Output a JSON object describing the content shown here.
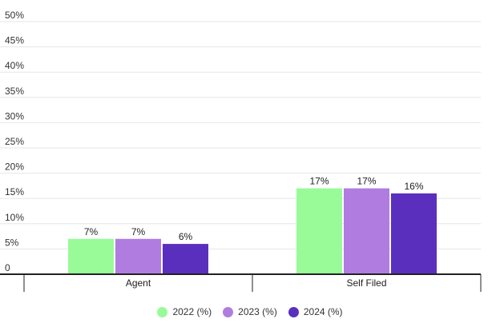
{
  "chart_data": {
    "type": "bar",
    "categories": [
      "Agent",
      "Self Filed"
    ],
    "series": [
      {
        "name": "2022 (%)",
        "values": [
          7,
          17
        ],
        "labels": [
          "7%",
          "17%"
        ],
        "color": "#98fb98"
      },
      {
        "name": "2023 (%)",
        "values": [
          7,
          17
        ],
        "labels": [
          "7%",
          "17%"
        ],
        "color": "#b07ce0"
      },
      {
        "name": "2024 (%)",
        "values": [
          6,
          16
        ],
        "labels": [
          "6%",
          "16%"
        ],
        "color": "#5b2fbd"
      }
    ],
    "ylim": [
      0,
      50
    ],
    "yticks": [
      0,
      5,
      10,
      15,
      20,
      25,
      30,
      35,
      40,
      45,
      50
    ],
    "ytick_labels": [
      "0",
      "5%",
      "10%",
      "15%",
      "20%",
      "25%",
      "30%",
      "35%",
      "40%",
      "45%",
      "50%"
    ],
    "grid": true,
    "legend_position": "bottom-center"
  }
}
